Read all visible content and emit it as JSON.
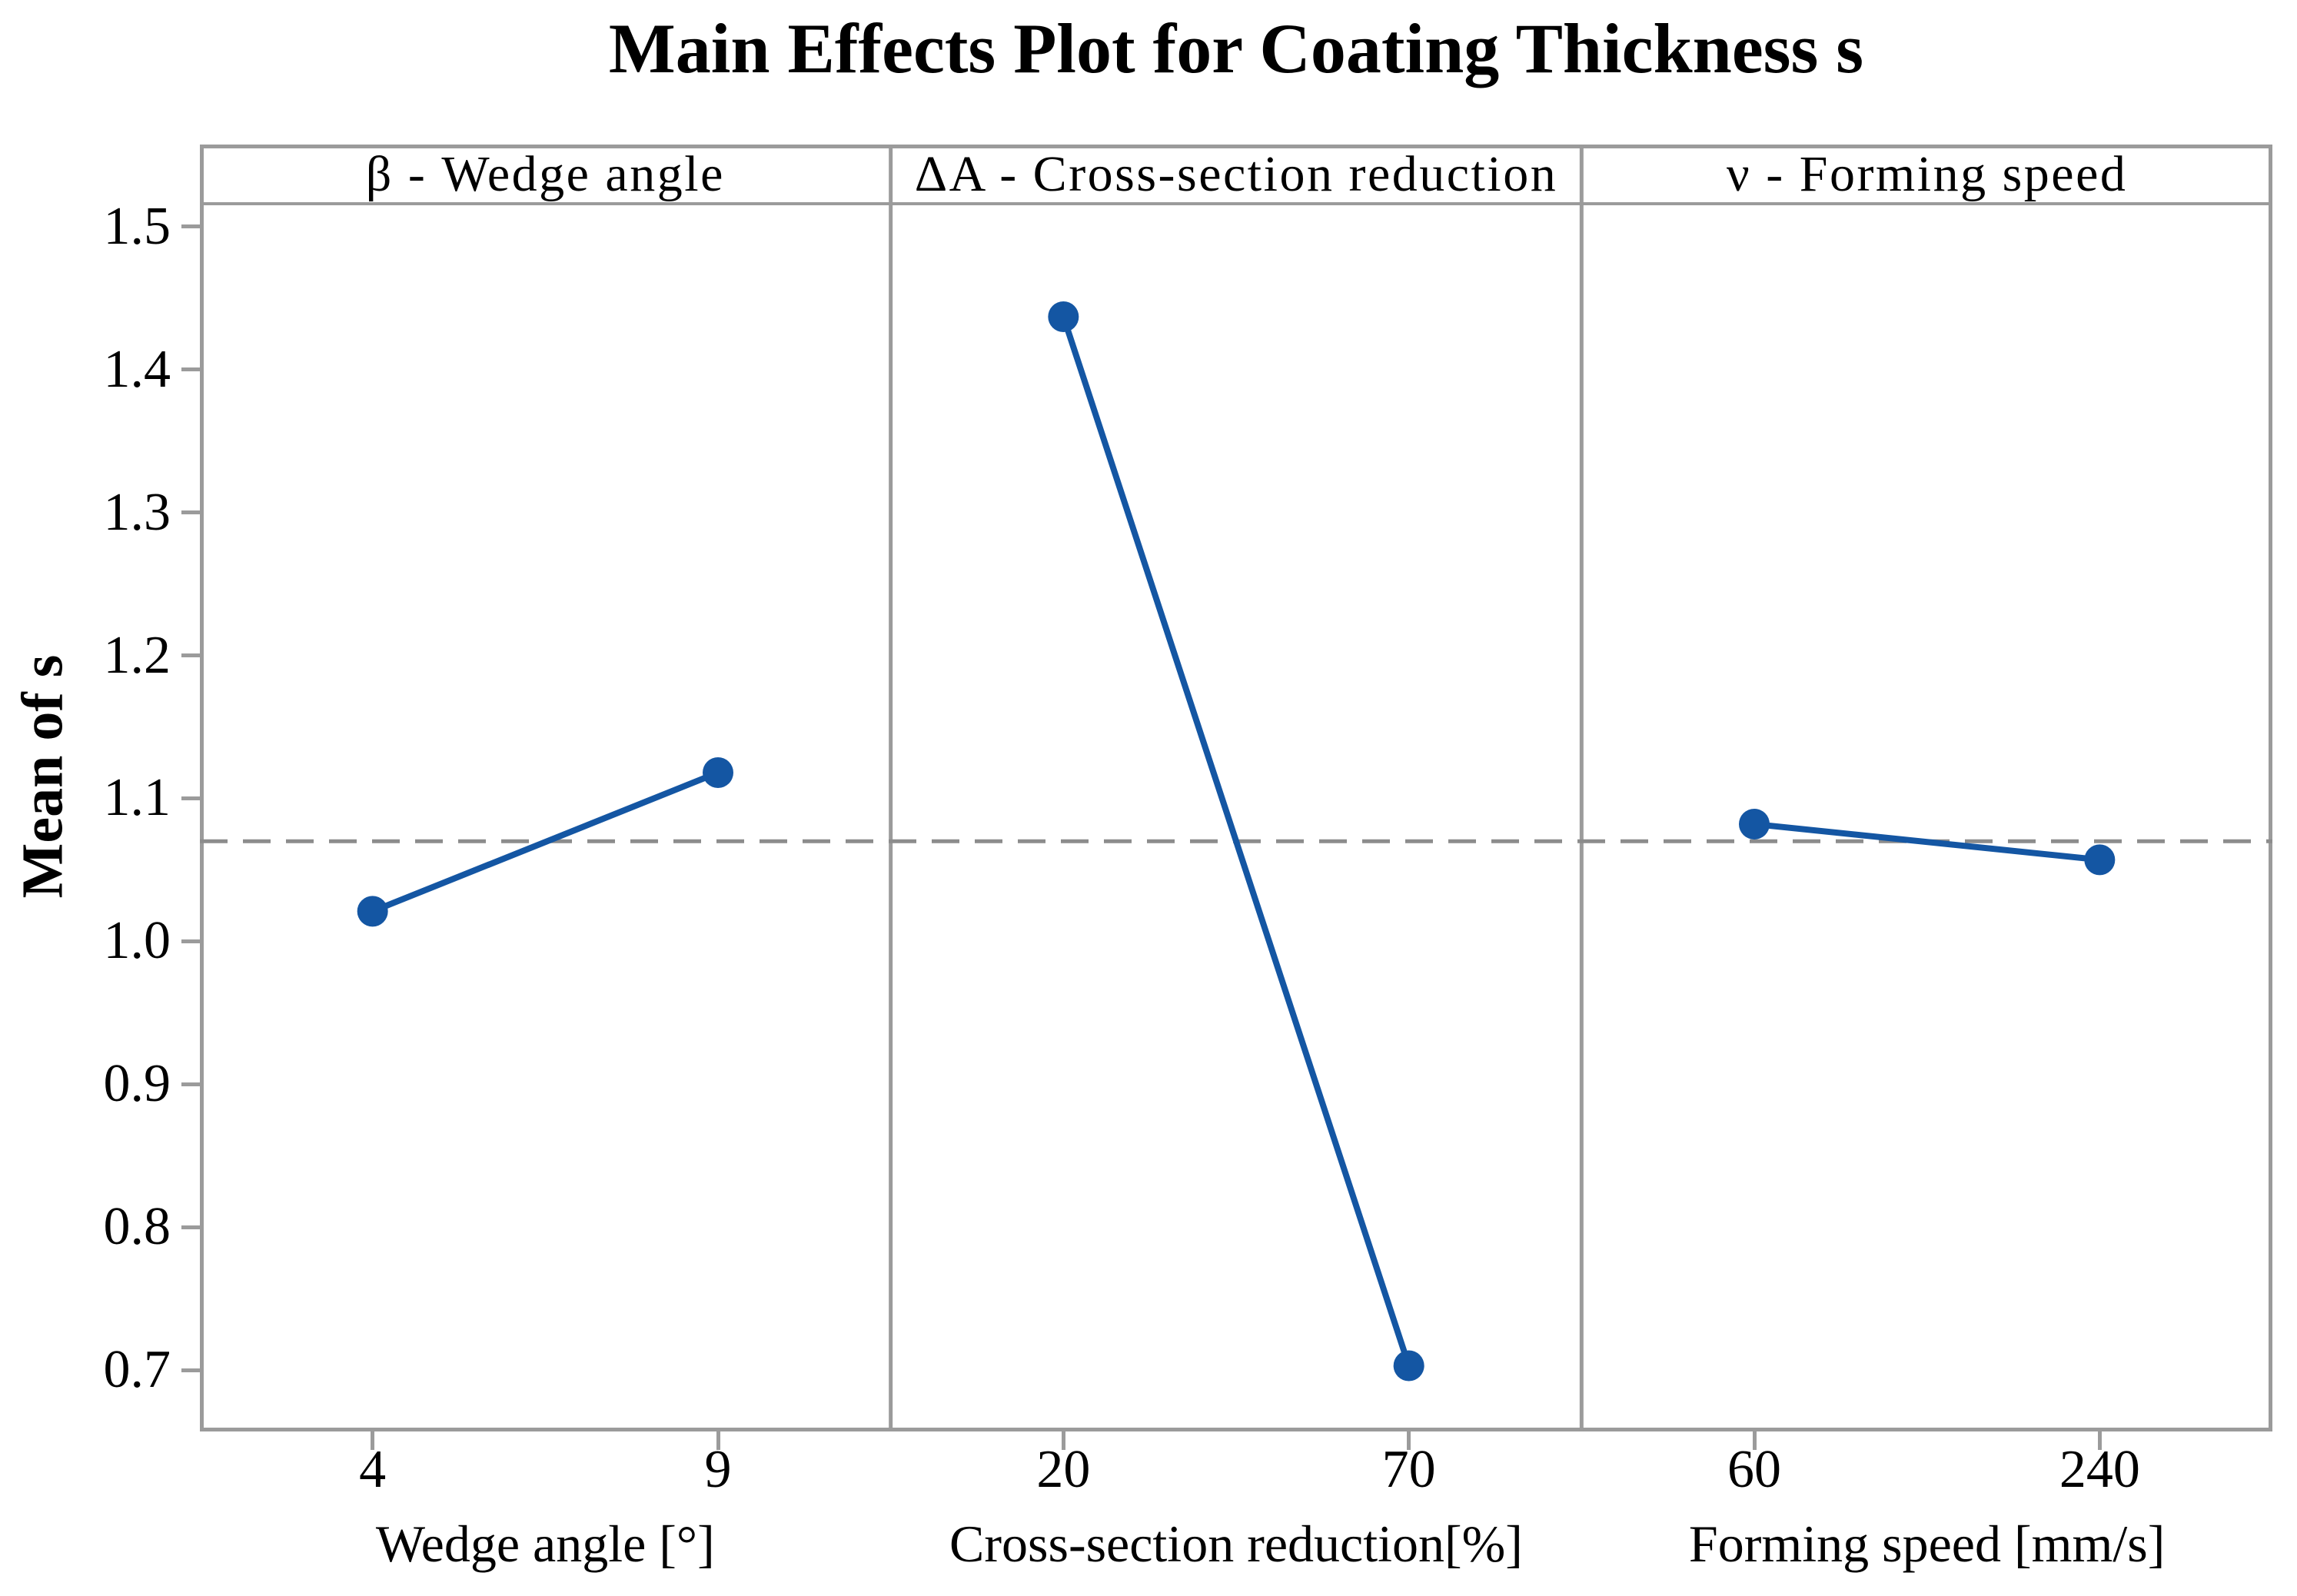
{
  "chart_data": {
    "type": "line",
    "title": "Main Effects Plot for Coating Thickness s",
    "ylabel": "Mean of s",
    "ylim": [
      0.657,
      1.5575
    ],
    "yticks": [
      {
        "label": "1.5",
        "value": 1.5
      },
      {
        "label": "1.4",
        "value": 1.4
      },
      {
        "label": "1.3",
        "value": 1.3
      },
      {
        "label": "1.2",
        "value": 1.2
      },
      {
        "label": "1.1",
        "value": 1.1
      },
      {
        "label": "1.0",
        "value": 1.0
      },
      {
        "label": "0.9",
        "value": 0.9
      },
      {
        "label": "0.8",
        "value": 0.8
      },
      {
        "label": "0.7",
        "value": 0.7
      }
    ],
    "grand_mean": 1.07,
    "mean_line_style": "dashed",
    "legend_position": "none",
    "grid": "off",
    "panels": [
      {
        "header": "β - Wedge angle",
        "xlabel": "Wedge angle [°]",
        "categories": [
          "4",
          "9"
        ],
        "values": [
          1.021,
          1.118
        ]
      },
      {
        "header": "ΔA - Cross-section reduction",
        "xlabel": "Cross-section reduction[%]",
        "categories": [
          "20",
          "70"
        ],
        "values": [
          1.437,
          0.703
        ]
      },
      {
        "header": "ν - Forming speed",
        "xlabel": "Forming speed [mm/s]",
        "categories": [
          "60",
          "240"
        ],
        "values": [
          1.082,
          1.057
        ]
      }
    ],
    "colors": {
      "series": "#1456A3",
      "mean_line": "#8C8C8C",
      "frame": "#9B9B9B",
      "text": "#000000"
    }
  }
}
